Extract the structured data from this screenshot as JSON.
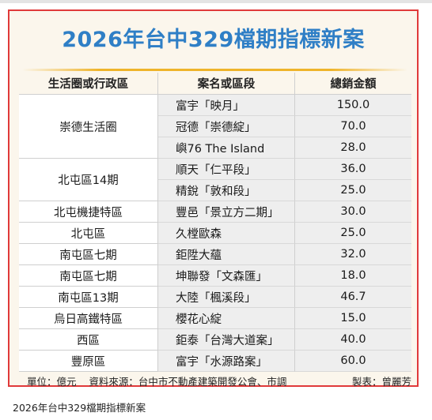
{
  "title": "2026年台中329檔期指標新案",
  "headers": {
    "area": "生活圈或行政區",
    "project": "案名或區段",
    "sales": "總銷金額"
  },
  "groups": [
    {
      "area": "崇德生活圈",
      "rows": [
        {
          "project": "富宇「映月」",
          "sales": "150.0"
        },
        {
          "project": "冠德「崇德綻」",
          "sales": "70.0"
        },
        {
          "project": "嶼76 The Island",
          "sales": "28.0"
        }
      ]
    },
    {
      "area": "北屯區14期",
      "rows": [
        {
          "project": "順天「仁平段」",
          "sales": "36.0"
        },
        {
          "project": "精銳「敦和段」",
          "sales": "25.0"
        }
      ]
    },
    {
      "area": "北屯機捷特區",
      "rows": [
        {
          "project": "豐邑「景立方二期」",
          "sales": "30.0"
        }
      ]
    },
    {
      "area": "北屯區",
      "rows": [
        {
          "project": "久樘歐森",
          "sales": "25.0"
        }
      ]
    },
    {
      "area": "南屯區七期",
      "rows": [
        {
          "project": "鉅陞大蘊",
          "sales": "32.0"
        }
      ]
    },
    {
      "area": "南屯區七期",
      "rows": [
        {
          "project": "坤聯發「文森匯」",
          "sales": "18.0"
        }
      ]
    },
    {
      "area": "南屯區13期",
      "rows": [
        {
          "project": "大陸「楓溪段」",
          "sales": "46.7"
        }
      ]
    },
    {
      "area": "烏日高鐵特區",
      "rows": [
        {
          "project": "櫻花心綻",
          "sales": "15.0"
        }
      ]
    },
    {
      "area": "西區",
      "rows": [
        {
          "project": "鉅泰「台灣大道案」",
          "sales": "40.0"
        }
      ]
    },
    {
      "area": "豐原區",
      "rows": [
        {
          "project": "富宇「水源路案」",
          "sales": "60.0"
        }
      ]
    }
  ],
  "footer": {
    "unit": "單位：億元",
    "source": "資料來源：台中市不動產建築開發公會、市調",
    "credit": "製表：曾麗芳"
  },
  "caption": "2026年台中329檔期指標新案"
}
